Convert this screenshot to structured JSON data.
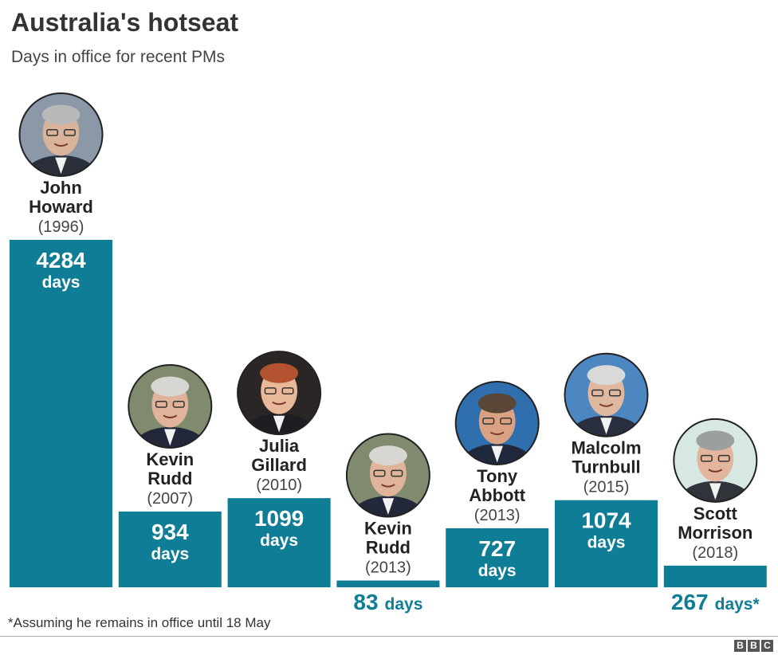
{
  "header": {
    "title": "Australia's hotseat",
    "subtitle": "Days in office for recent PMs"
  },
  "chart_data": {
    "type": "bar",
    "title": "Australia's hotseat",
    "subtitle": "Days in office for recent PMs",
    "value_unit": "days",
    "categories": [
      "John Howard",
      "Kevin Rudd",
      "Julia Gillard",
      "Kevin Rudd",
      "Tony Abbott",
      "Malcolm Turnbull",
      "Scott Morrison"
    ],
    "series": [
      {
        "values": [
          4284,
          934,
          1099,
          83,
          727,
          1074,
          267
        ]
      }
    ],
    "bars": [
      {
        "first": "John",
        "last": "Howard",
        "year": "(1996)",
        "value": 4284,
        "value_label": "4284",
        "unit_label": "days",
        "photo": "john-howard-portrait"
      },
      {
        "first": "Kevin",
        "last": "Rudd",
        "year": "(2007)",
        "value": 934,
        "value_label": "934",
        "unit_label": "days",
        "photo": "kevin-rudd-portrait"
      },
      {
        "first": "Julia",
        "last": "Gillard",
        "year": "(2010)",
        "value": 1099,
        "value_label": "1099",
        "unit_label": "days",
        "photo": "julia-gillard-portrait"
      },
      {
        "first": "Kevin",
        "last": "Rudd",
        "year": "(2013)",
        "value": 83,
        "value_label": "83",
        "unit_label": "days",
        "photo": "kevin-rudd-portrait"
      },
      {
        "first": "Tony",
        "last": "Abbott",
        "year": "(2013)",
        "value": 727,
        "value_label": "727",
        "unit_label": "days",
        "photo": "tony-abbott-portrait"
      },
      {
        "first": "Malcolm",
        "last": "Turnbull",
        "year": "(2015)",
        "value": 1074,
        "value_label": "1074",
        "unit_label": "days",
        "photo": "malcolm-turnbull-portrait"
      },
      {
        "first": "Scott",
        "last": "Morrison",
        "year": "(2018)",
        "value": 267,
        "value_label": "267",
        "unit_label": "days*",
        "photo": "scott-morrison-portrait"
      }
    ],
    "ylim": [
      0,
      4284
    ],
    "grid": false,
    "legend": "none",
    "colors": {
      "bar": "#0F7D95",
      "bar_text": "#ffffff",
      "outside_text": "#0F7D95"
    }
  },
  "footer": {
    "footnote": "*Assuming he remains in office until 18 May",
    "logo_letters": [
      "B",
      "B",
      "C"
    ]
  }
}
